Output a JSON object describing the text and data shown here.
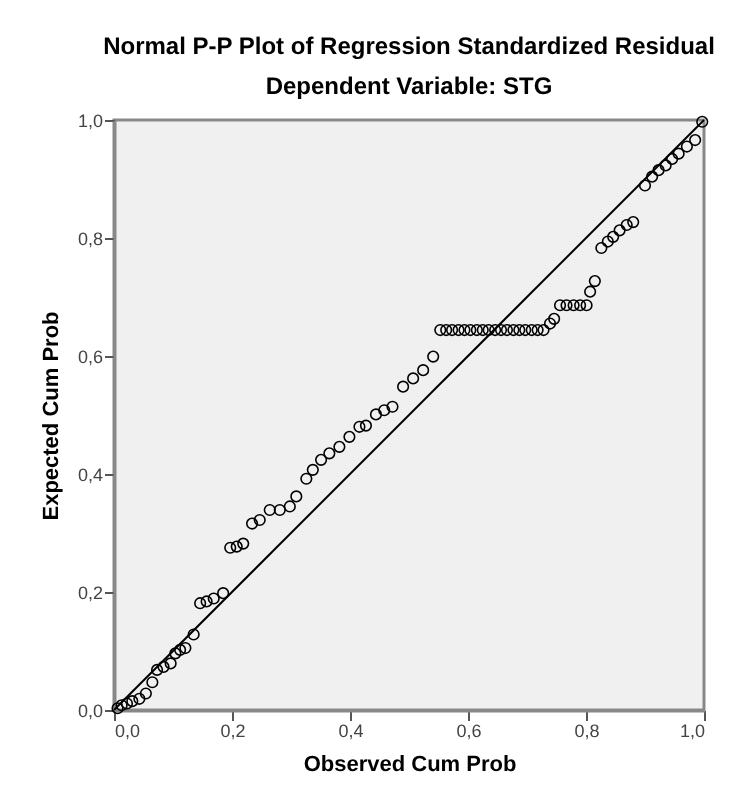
{
  "chart_data": {
    "type": "scatter",
    "title": "Normal P-P Plot of Regression Standardized Residual",
    "subtitle": "Dependent Variable: STG",
    "xlabel": "Observed Cum Prob",
    "ylabel": "Expected Cum Prob",
    "xlim": [
      0,
      1
    ],
    "ylim": [
      0,
      1
    ],
    "xticks": [
      {
        "value": 0,
        "label": "0,0"
      },
      {
        "value": 0.2,
        "label": "0,2"
      },
      {
        "value": 0.4,
        "label": "0,4"
      },
      {
        "value": 0.6,
        "label": "0,6"
      },
      {
        "value": 0.8,
        "label": "0,8"
      },
      {
        "value": 1,
        "label": "1,0"
      }
    ],
    "yticks": [
      {
        "value": 0,
        "label": "0,0"
      },
      {
        "value": 0.2,
        "label": "0,2"
      },
      {
        "value": 0.4,
        "label": "0,4"
      },
      {
        "value": 0.6,
        "label": "0,6"
      },
      {
        "value": 0.8,
        "label": "0,8"
      },
      {
        "value": 1,
        "label": "1,0"
      }
    ],
    "grid": false,
    "series": [
      {
        "marker": "circle",
        "color": "#000000",
        "x": [
          0.006,
          0.013,
          0.022,
          0.031,
          0.043,
          0.054,
          0.065,
          0.073,
          0.084,
          0.096,
          0.104,
          0.112,
          0.121,
          0.135,
          0.146,
          0.157,
          0.169,
          0.185,
          0.197,
          0.208,
          0.219,
          0.234,
          0.247,
          0.264,
          0.281,
          0.298,
          0.309,
          0.326,
          0.337,
          0.351,
          0.365,
          0.382,
          0.399,
          0.416,
          0.427,
          0.444,
          0.458,
          0.472,
          0.49,
          0.507,
          0.524,
          0.541,
          0.553,
          0.563,
          0.573,
          0.584,
          0.594,
          0.604,
          0.615,
          0.625,
          0.635,
          0.646,
          0.656,
          0.666,
          0.677,
          0.687,
          0.697,
          0.708,
          0.718,
          0.728,
          0.739,
          0.746,
          0.756,
          0.767,
          0.779,
          0.79,
          0.801,
          0.807,
          0.815,
          0.826,
          0.837,
          0.846,
          0.857,
          0.869,
          0.88,
          0.9,
          0.912,
          0.923,
          0.935,
          0.946,
          0.957,
          0.971,
          0.985,
          0.997
        ],
        "values": [
          0.003,
          0.008,
          0.011,
          0.015,
          0.019,
          0.028,
          0.047,
          0.068,
          0.073,
          0.079,
          0.096,
          0.102,
          0.105,
          0.128,
          0.181,
          0.184,
          0.189,
          0.198,
          0.275,
          0.277,
          0.282,
          0.316,
          0.322,
          0.339,
          0.339,
          0.345,
          0.362,
          0.392,
          0.407,
          0.424,
          0.435,
          0.446,
          0.463,
          0.48,
          0.482,
          0.501,
          0.508,
          0.514,
          0.548,
          0.562,
          0.576,
          0.599,
          0.644,
          0.644,
          0.644,
          0.644,
          0.644,
          0.644,
          0.644,
          0.644,
          0.644,
          0.644,
          0.644,
          0.644,
          0.644,
          0.644,
          0.644,
          0.644,
          0.644,
          0.644,
          0.655,
          0.663,
          0.686,
          0.686,
          0.686,
          0.686,
          0.686,
          0.709,
          0.727,
          0.783,
          0.794,
          0.802,
          0.813,
          0.822,
          0.827,
          0.889,
          0.904,
          0.915,
          0.923,
          0.934,
          0.943,
          0.955,
          0.966,
          0.997
        ]
      },
      {
        "type": "line",
        "marker": "none",
        "color": "#000000",
        "x": [
          0,
          1
        ],
        "values": [
          0,
          1
        ]
      }
    ]
  }
}
